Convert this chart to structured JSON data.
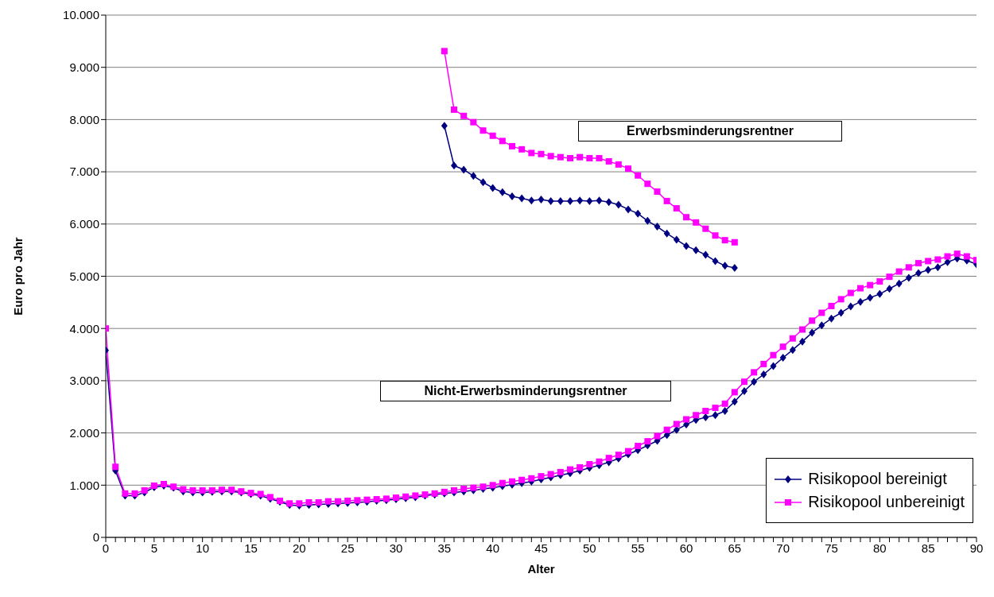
{
  "chart_data": {
    "type": "line",
    "xlabel": "Alter",
    "ylabel": "Euro pro Jahr",
    "annotations": [
      "Erwerbsminderungsrentner",
      "Nicht-Erwerbsminderungsrentner"
    ],
    "xlim": [
      0,
      90
    ],
    "xticks": [
      0,
      {
        "value": 1,
        "label": null
      },
      {
        "value": 2,
        "label": null
      },
      {
        "value": 3,
        "label": null
      },
      {
        "value": 4,
        "label": null
      },
      5,
      {
        "value": 6,
        "label": null
      },
      {
        "value": 7,
        "label": null
      },
      {
        "value": 8,
        "label": null
      },
      {
        "value": 9,
        "label": null
      },
      10,
      {
        "value": 11,
        "label": null
      },
      {
        "value": 12,
        "label": null
      },
      {
        "value": 13,
        "label": null
      },
      {
        "value": 14,
        "label": null
      },
      15,
      {
        "value": 16,
        "label": null
      },
      {
        "value": 17,
        "label": null
      },
      {
        "value": 18,
        "label": null
      },
      {
        "value": 19,
        "label": null
      },
      20,
      {
        "value": 21,
        "label": null
      },
      {
        "value": 22,
        "label": null
      },
      {
        "value": 23,
        "label": null
      },
      {
        "value": 24,
        "label": null
      },
      25,
      {
        "value": 26,
        "label": null
      },
      {
        "value": 27,
        "label": null
      },
      {
        "value": 28,
        "label": null
      },
      {
        "value": 29,
        "label": null
      },
      30,
      {
        "value": 31,
        "label": null
      },
      {
        "value": 32,
        "label": null
      },
      {
        "value": 33,
        "label": null
      },
      {
        "value": 34,
        "label": null
      },
      35,
      {
        "value": 36,
        "label": null
      },
      {
        "value": 37,
        "label": null
      },
      {
        "value": 38,
        "label": null
      },
      {
        "value": 39,
        "label": null
      },
      40,
      {
        "value": 41,
        "label": null
      },
      {
        "value": 42,
        "label": null
      },
      {
        "value": 43,
        "label": null
      },
      {
        "value": 44,
        "label": null
      },
      45,
      {
        "value": 46,
        "label": null
      },
      {
        "value": 47,
        "label": null
      },
      {
        "value": 48,
        "label": null
      },
      {
        "value": 49,
        "label": null
      },
      50,
      {
        "value": 51,
        "label": null
      },
      {
        "value": 52,
        "label": null
      },
      {
        "value": 53,
        "label": null
      },
      {
        "value": 54,
        "label": null
      },
      55,
      {
        "value": 56,
        "label": null
      },
      {
        "value": 57,
        "label": null
      },
      {
        "value": 58,
        "label": null
      },
      {
        "value": 59,
        "label": null
      },
      60,
      {
        "value": 61,
        "label": null
      },
      {
        "value": 62,
        "label": null
      },
      {
        "value": 63,
        "label": null
      },
      {
        "value": 64,
        "label": null
      },
      65,
      {
        "value": 66,
        "label": null
      },
      {
        "value": 67,
        "label": null
      },
      {
        "value": 68,
        "label": null
      },
      {
        "value": 69,
        "label": null
      },
      70,
      {
        "value": 71,
        "label": null
      },
      {
        "value": 72,
        "label": null
      },
      {
        "value": 73,
        "label": null
      },
      {
        "value": 74,
        "label": null
      },
      75,
      {
        "value": 76,
        "label": null
      },
      {
        "value": 77,
        "label": null
      },
      {
        "value": 78,
        "label": null
      },
      {
        "value": 79,
        "label": null
      },
      80,
      {
        "value": 81,
        "label": null
      },
      {
        "value": 82,
        "label": null
      },
      {
        "value": 83,
        "label": null
      },
      {
        "value": 84,
        "label": null
      },
      85,
      {
        "value": 86,
        "label": null
      },
      {
        "value": 87,
        "label": null
      },
      {
        "value": 88,
        "label": null
      },
      {
        "value": 89,
        "label": null
      },
      90
    ],
    "ylim": [
      0,
      10000
    ],
    "yticks": [
      0,
      {
        "value": 1000,
        "label": "1.000"
      },
      {
        "value": 2000,
        "label": "2.000"
      },
      {
        "value": 3000,
        "label": "3.000"
      },
      {
        "value": 4000,
        "label": "4.000"
      },
      {
        "value": 5000,
        "label": "5.000"
      },
      {
        "value": 6000,
        "label": "6.000"
      },
      {
        "value": 7000,
        "label": "7.000"
      },
      {
        "value": 8000,
        "label": "8.000"
      },
      {
        "value": 9000,
        "label": "9.000"
      },
      {
        "value": 10000,
        "label": "10.000"
      }
    ],
    "grid": "y",
    "legend": "bottom right",
    "series": [
      {
        "name": "Risikopool bereinigt",
        "color": "#000080",
        "marker": "diamond",
        "x": [
          0,
          1,
          2,
          3,
          4,
          5,
          6,
          7,
          8,
          9,
          10,
          11,
          12,
          13,
          14,
          15,
          16,
          17,
          18,
          19,
          20,
          21,
          22,
          23,
          24,
          25,
          26,
          27,
          28,
          29,
          30,
          31,
          32,
          33,
          34,
          35,
          36,
          37,
          38,
          39,
          40,
          41,
          42,
          43,
          44,
          45,
          46,
          47,
          48,
          49,
          50,
          51,
          52,
          53,
          54,
          55,
          56,
          57,
          58,
          59,
          60,
          61,
          62,
          63,
          64,
          65,
          66,
          67,
          68,
          69,
          70,
          71,
          72,
          73,
          74,
          75,
          76,
          77,
          78,
          79,
          80,
          81,
          82,
          83,
          84,
          85,
          86,
          87,
          88,
          89,
          90
        ],
        "values": [
          3580,
          1280,
          800,
          800,
          860,
          960,
          990,
          950,
          880,
          860,
          860,
          870,
          880,
          880,
          860,
          830,
          800,
          740,
          680,
          620,
          610,
          620,
          630,
          640,
          650,
          660,
          670,
          680,
          700,
          710,
          730,
          750,
          770,
          800,
          820,
          840,
          860,
          880,
          900,
          930,
          950,
          980,
          1010,
          1040,
          1070,
          1110,
          1150,
          1190,
          1230,
          1280,
          1330,
          1380,
          1440,
          1510,
          1590,
          1670,
          1760,
          1850,
          1960,
          2060,
          2160,
          2250,
          2300,
          2340,
          2420,
          2600,
          2800,
          2980,
          3120,
          3280,
          3440,
          3590,
          3750,
          3920,
          4060,
          4190,
          4300,
          4420,
          4510,
          4590,
          4660,
          4760,
          4860,
          4970,
          5060,
          5120,
          5170,
          5270,
          5340,
          5300,
          5230
        ]
      },
      {
        "name": "Risikopool unbereinigt",
        "color": "#ff00ff",
        "marker": "square",
        "x": [
          0,
          1,
          2,
          3,
          4,
          5,
          6,
          7,
          8,
          9,
          10,
          11,
          12,
          13,
          14,
          15,
          16,
          17,
          18,
          19,
          20,
          21,
          22,
          23,
          24,
          25,
          26,
          27,
          28,
          29,
          30,
          31,
          32,
          33,
          34,
          35,
          36,
          37,
          38,
          39,
          40,
          41,
          42,
          43,
          44,
          45,
          46,
          47,
          48,
          49,
          50,
          51,
          52,
          53,
          54,
          55,
          56,
          57,
          58,
          59,
          60,
          61,
          62,
          63,
          64,
          65,
          66,
          67,
          68,
          69,
          70,
          71,
          72,
          73,
          74,
          75,
          76,
          77,
          78,
          79,
          80,
          81,
          82,
          83,
          84,
          85,
          86,
          87,
          88,
          89,
          90
        ],
        "values": [
          4000,
          1350,
          840,
          840,
          900,
          990,
          1020,
          970,
          920,
          900,
          900,
          900,
          910,
          910,
          880,
          850,
          830,
          770,
          700,
          650,
          650,
          670,
          670,
          690,
          690,
          700,
          710,
          720,
          730,
          740,
          760,
          780,
          800,
          820,
          840,
          870,
          900,
          930,
          950,
          970,
          1000,
          1040,
          1070,
          1100,
          1130,
          1170,
          1210,
          1250,
          1300,
          1340,
          1400,
          1450,
          1520,
          1580,
          1650,
          1750,
          1840,
          1940,
          2060,
          2170,
          2260,
          2340,
          2420,
          2480,
          2560,
          2780,
          2980,
          3160,
          3320,
          3490,
          3650,
          3810,
          3980,
          4150,
          4300,
          4430,
          4560,
          4680,
          4770,
          4830,
          4900,
          4990,
          5090,
          5170,
          5250,
          5290,
          5320,
          5380,
          5430,
          5380,
          5310
        ]
      },
      {
        "color": "#000080",
        "marker": "diamond",
        "x": [
          35,
          36,
          37,
          38,
          39,
          40,
          41,
          42,
          43,
          44,
          45,
          46,
          47,
          48,
          49,
          50,
          51,
          52,
          53,
          54,
          55,
          56,
          57,
          58,
          59,
          60,
          61,
          62,
          63,
          64,
          65
        ],
        "values": [
          7880,
          7120,
          7040,
          6920,
          6800,
          6690,
          6610,
          6530,
          6490,
          6450,
          6470,
          6440,
          6440,
          6440,
          6450,
          6440,
          6450,
          6420,
          6370,
          6280,
          6200,
          6060,
          5950,
          5820,
          5700,
          5580,
          5500,
          5410,
          5290,
          5200,
          5160
        ]
      },
      {
        "color": "#ff00ff",
        "marker": "square",
        "x": [
          35,
          36,
          37,
          38,
          39,
          40,
          41,
          42,
          43,
          44,
          45,
          46,
          47,
          48,
          49,
          50,
          51,
          52,
          53,
          54,
          55,
          56,
          57,
          58,
          59,
          60,
          61,
          62,
          63,
          64,
          65
        ],
        "values": [
          9310,
          8190,
          8070,
          7950,
          7790,
          7690,
          7590,
          7490,
          7430,
          7360,
          7340,
          7300,
          7280,
          7260,
          7280,
          7260,
          7260,
          7200,
          7140,
          7060,
          6930,
          6770,
          6620,
          6440,
          6300,
          6130,
          6030,
          5910,
          5780,
          5690,
          5650
        ]
      }
    ]
  }
}
